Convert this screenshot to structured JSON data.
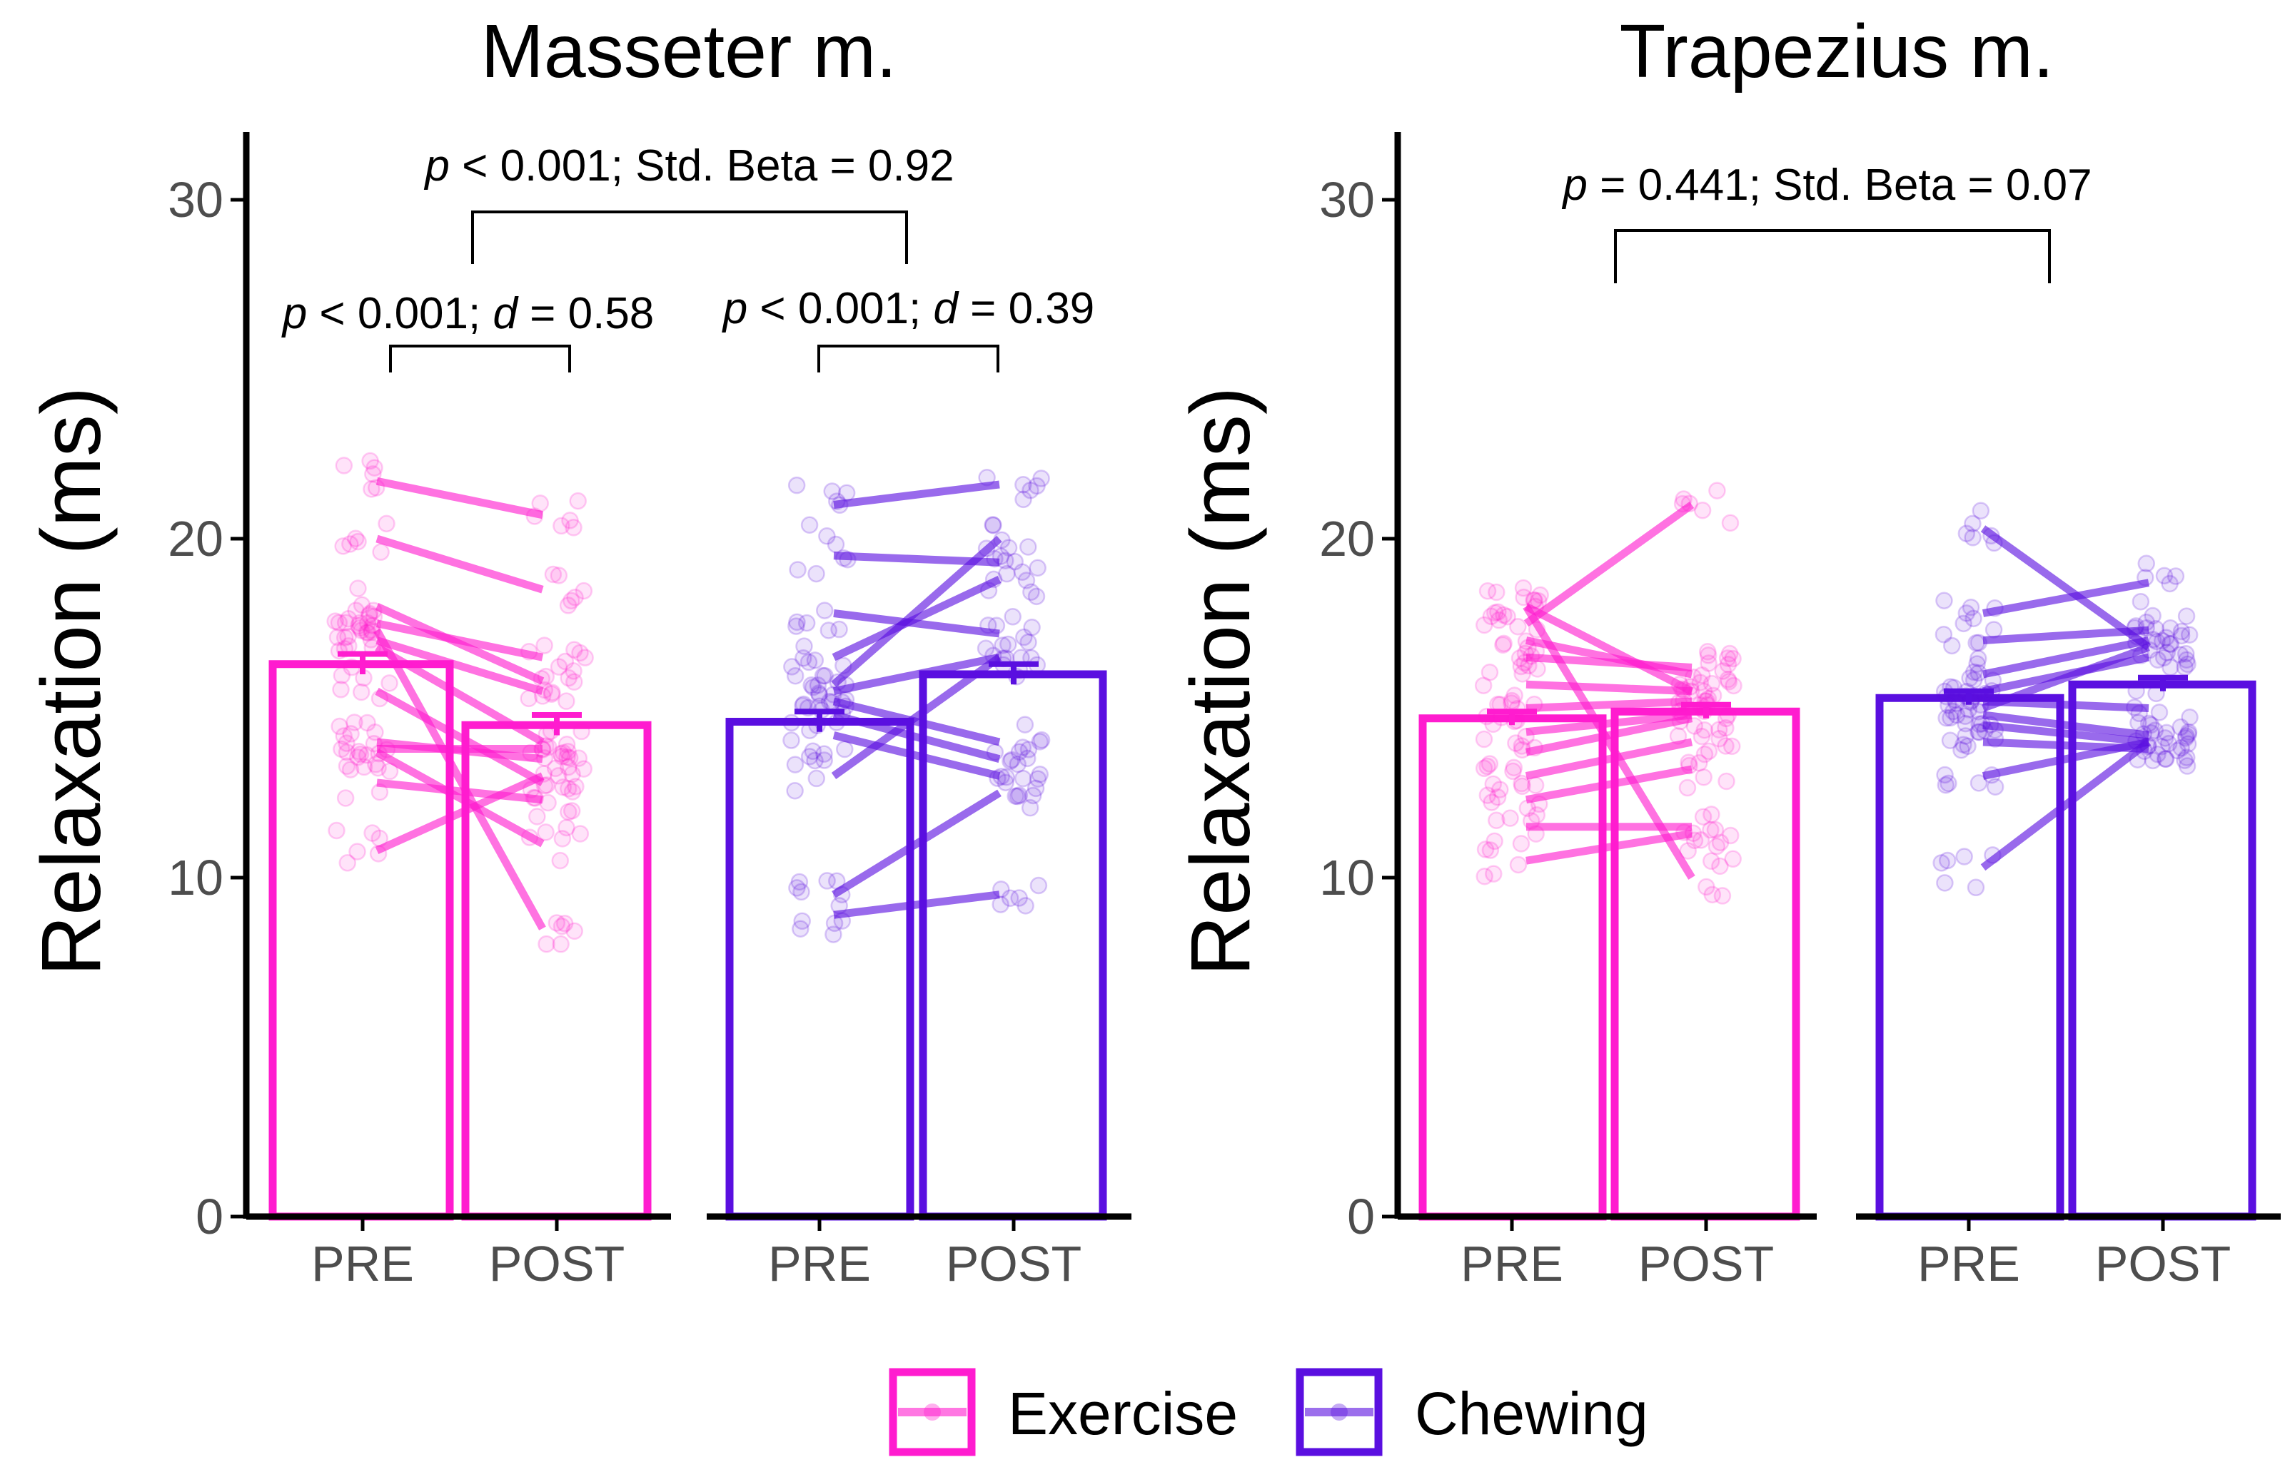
{
  "colors": {
    "exercise": "#ff1ccf",
    "chewing": "#5a0fe0",
    "axis": "#000000",
    "tick_text": "#4d4d4d"
  },
  "legend": [
    {
      "key": "exercise",
      "label": "Exercise"
    },
    {
      "key": "chewing",
      "label": "Chewing"
    }
  ],
  "chart_data": [
    {
      "type": "bar",
      "title": "Masseter m.",
      "ylabel": "Relaxation (ms)",
      "ylim": [
        0,
        32
      ],
      "yticks": [
        0,
        10,
        20,
        30
      ],
      "groups": [
        {
          "name": "Exercise",
          "color_key": "exercise",
          "categories": [
            "PRE",
            "POST"
          ],
          "values": [
            16.3,
            14.5
          ],
          "errors": [
            0.3,
            0.3
          ],
          "subject_lines": [
            [
              21.7,
              20.7
            ],
            [
              20.0,
              18.5
            ],
            [
              18.0,
              15.8
            ],
            [
              17.5,
              16.5
            ],
            [
              17.0,
              15.5
            ],
            [
              16.8,
              14.0
            ],
            [
              15.5,
              12.8
            ],
            [
              14.0,
              13.5
            ],
            [
              13.8,
              13.8
            ],
            [
              13.7,
              11.0
            ],
            [
              12.8,
              12.3
            ],
            [
              17.3,
              8.5
            ],
            [
              10.8,
              13.0
            ]
          ]
        },
        {
          "name": "Chewing",
          "color_key": "chewing",
          "categories": [
            "PRE",
            "POST"
          ],
          "values": [
            14.6,
            16.0
          ],
          "errors": [
            0.3,
            0.3
          ],
          "subject_lines": [
            [
              21.0,
              21.6
            ],
            [
              19.5,
              19.3
            ],
            [
              17.8,
              17.2
            ],
            [
              16.5,
              18.8
            ],
            [
              15.5,
              16.5
            ],
            [
              15.7,
              20.0
            ],
            [
              15.2,
              14.0
            ],
            [
              14.2,
              13.0
            ],
            [
              13.0,
              16.5
            ],
            [
              9.5,
              12.5
            ],
            [
              8.9,
              9.5
            ],
            [
              14.8,
              13.5
            ]
          ]
        }
      ],
      "annotations": [
        {
          "text_pre": "p",
          "text_post": " < 0.001; Std. Beta = 0.92"
        },
        {
          "text_pre": "p",
          "text_mid": " < 0.001; ",
          "text_italic2": "d",
          "text_post": " = 0.58"
        },
        {
          "text_pre": "p",
          "text_mid": " < 0.001; ",
          "text_italic2": "d",
          "text_post": " = 0.39"
        }
      ]
    },
    {
      "type": "bar",
      "title": "Trapezius m.",
      "ylabel": "Relaxation (ms)",
      "ylim": [
        0,
        32
      ],
      "yticks": [
        0,
        10,
        20,
        30
      ],
      "groups": [
        {
          "name": "Exercise",
          "color_key": "exercise",
          "categories": [
            "PRE",
            "POST"
          ],
          "values": [
            14.7,
            14.9
          ],
          "errors": [
            0.2,
            0.2
          ],
          "subject_lines": [
            [
              18.0,
              15.5
            ],
            [
              17.5,
              21.0
            ],
            [
              17.0,
              16.0
            ],
            [
              16.5,
              16.2
            ],
            [
              15.7,
              15.5
            ],
            [
              15.0,
              15.2
            ],
            [
              14.3,
              14.8
            ],
            [
              13.7,
              14.7
            ],
            [
              13.0,
              14.0
            ],
            [
              12.3,
              13.2
            ],
            [
              11.5,
              11.5
            ],
            [
              10.5,
              11.3
            ],
            [
              18.0,
              10.0
            ]
          ]
        },
        {
          "name": "Chewing",
          "color_key": "chewing",
          "categories": [
            "PRE",
            "POST"
          ],
          "values": [
            15.3,
            15.7
          ],
          "errors": [
            0.2,
            0.2
          ],
          "subject_lines": [
            [
              20.3,
              16.8
            ],
            [
              17.8,
              18.7
            ],
            [
              17.0,
              17.3
            ],
            [
              16.0,
              17.0
            ],
            [
              15.5,
              16.5
            ],
            [
              15.2,
              15.0
            ],
            [
              14.8,
              14.2
            ],
            [
              14.5,
              14.0
            ],
            [
              14.0,
              13.8
            ],
            [
              13.0,
              14.0
            ],
            [
              10.3,
              14.0
            ],
            [
              15.0,
              16.8
            ]
          ]
        }
      ],
      "annotations": [
        {
          "text_pre": "p",
          "text_post": " = 0.441; Std. Beta = 0.07"
        }
      ]
    }
  ]
}
